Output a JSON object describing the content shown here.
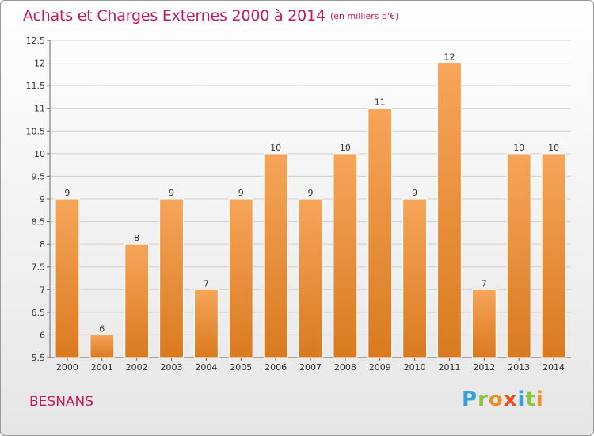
{
  "header": {
    "title": "Achats et Charges Externes 2000 à 2014",
    "unit": "(en milliers d'€)"
  },
  "footer": {
    "location": "BESNANS",
    "logo_text": "Proxiti"
  },
  "colors": {
    "bar_top": "#f7a55a",
    "bar_bottom": "#d97a1f",
    "title": "#c2185b",
    "grid": "#d0d0d0"
  },
  "chart_data": {
    "type": "bar",
    "title": "Achats et Charges Externes 2000 à 2014",
    "xlabel": "",
    "ylabel": "",
    "categories": [
      "2000",
      "2001",
      "2002",
      "2003",
      "2004",
      "2005",
      "2006",
      "2007",
      "2008",
      "2009",
      "2010",
      "2011",
      "2012",
      "2013",
      "2014"
    ],
    "values": [
      9,
      6,
      8,
      9,
      7,
      9,
      10,
      9,
      10,
      11,
      9,
      12,
      7,
      10,
      10
    ],
    "data_labels": [
      "9",
      "6",
      "8",
      "9",
      "7",
      "9",
      "10",
      "9",
      "10",
      "11",
      "9",
      "12",
      "7",
      "10",
      "10"
    ],
    "ylim": [
      5.5,
      12.5
    ],
    "yticks": [
      5.5,
      6,
      6.5,
      7,
      7.5,
      8,
      8.5,
      9,
      9.5,
      10,
      10.5,
      11,
      11.5,
      12,
      12.5
    ],
    "ytick_labels": [
      "5.5",
      "6",
      "6.5",
      "7",
      "7.5",
      "8",
      "8.5",
      "9",
      "9.5",
      "10",
      "10.5",
      "11",
      "11.5",
      "12",
      "12.5"
    ],
    "grid": true,
    "legend": "none"
  }
}
